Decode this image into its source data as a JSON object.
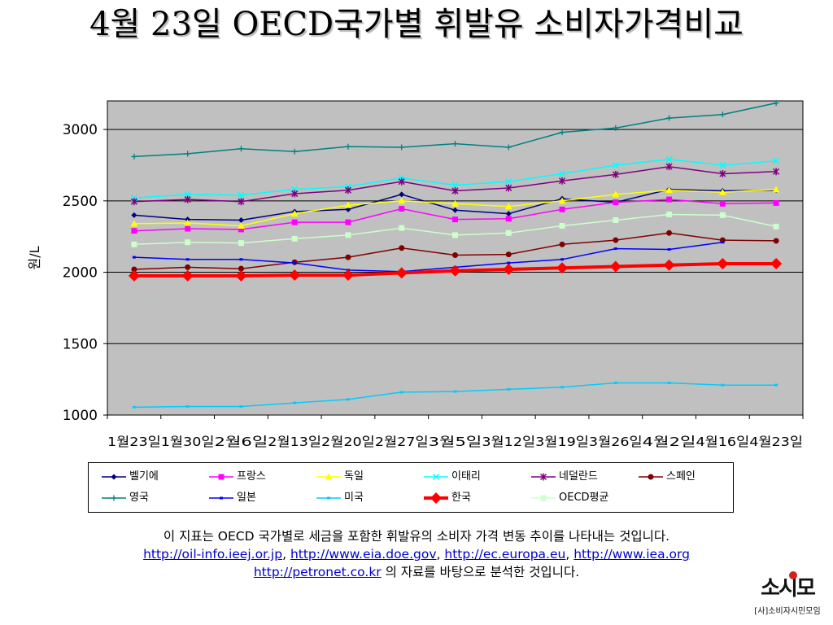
{
  "title": "4월 23일 OECD국가별 휘발유 소비자가격비교",
  "chart_data": {
    "type": "line",
    "ylabel": "원/L",
    "xlabel": "",
    "ylim": [
      1000,
      3200
    ],
    "yticks": [
      1000,
      1500,
      2000,
      2500,
      3000
    ],
    "grid": true,
    "background": "#c0c0c0",
    "legend_position": "bottom",
    "categories": [
      "1월23일",
      "1월30일",
      "2월6일",
      "2월13일",
      "2월20일",
      "2월27일",
      "3월5일",
      "3월12일",
      "3월19일",
      "3월26일",
      "4월2일",
      "4월16일",
      "4월23일"
    ],
    "series": [
      {
        "name": "벨기에",
        "color": "#000080",
        "marker": "diamond",
        "values": [
          2400,
          2370,
          2365,
          2425,
          2440,
          2545,
          2435,
          2410,
          2515,
          2490,
          2580,
          2570,
          2575
        ]
      },
      {
        "name": "프랑스",
        "color": "#ff00ff",
        "marker": "square",
        "values": [
          2290,
          2305,
          2300,
          2350,
          2350,
          2445,
          2370,
          2375,
          2440,
          2490,
          2510,
          2480,
          2485
        ]
      },
      {
        "name": "독일",
        "color": "#ffff00",
        "marker": "triangle",
        "values": [
          2340,
          2345,
          2325,
          2410,
          2470,
          2500,
          2480,
          2460,
          2500,
          2545,
          2575,
          2560,
          2580
        ]
      },
      {
        "name": "이태리",
        "color": "#00ffff",
        "marker": "x",
        "values": [
          2520,
          2545,
          2540,
          2580,
          2600,
          2660,
          2610,
          2635,
          2690,
          2750,
          2790,
          2750,
          2780
        ]
      },
      {
        "name": "네덜란드",
        "color": "#800080",
        "marker": "star",
        "values": [
          2495,
          2510,
          2495,
          2550,
          2575,
          2635,
          2570,
          2590,
          2640,
          2685,
          2740,
          2690,
          2705
        ]
      },
      {
        "name": "스페인",
        "color": "#800000",
        "marker": "circle",
        "values": [
          2020,
          2035,
          2025,
          2070,
          2105,
          2170,
          2120,
          2125,
          2195,
          2225,
          2275,
          2225,
          2220
        ]
      },
      {
        "name": "영국",
        "color": "#008080",
        "marker": "plus",
        "values": [
          2810,
          2830,
          2865,
          2845,
          2880,
          2875,
          2900,
          2875,
          2980,
          3010,
          3080,
          3105,
          3185
        ]
      },
      {
        "name": "일본",
        "color": "#0000ff",
        "marker": "dash",
        "values": [
          2105,
          2090,
          2090,
          2065,
          2015,
          2005,
          2035,
          2065,
          2090,
          2165,
          2160,
          2210,
          null
        ]
      },
      {
        "name": "미국",
        "color": "#00ccff",
        "marker": "dash",
        "values": [
          1055,
          1060,
          1060,
          1085,
          1110,
          1160,
          1165,
          1180,
          1195,
          1225,
          1225,
          1210,
          1210
        ]
      },
      {
        "name": "한국",
        "color": "#ff0000",
        "marker": "diamond-large",
        "values": [
          1975,
          1975,
          1975,
          1980,
          1980,
          1995,
          2010,
          2020,
          2030,
          2040,
          2050,
          2060,
          2060
        ]
      },
      {
        "name": "OECD평균",
        "color": "#ccffcc",
        "marker": "square",
        "values": [
          2195,
          2210,
          2205,
          2235,
          2260,
          2310,
          2260,
          2275,
          2325,
          2365,
          2405,
          2400,
          2320
        ]
      }
    ]
  },
  "footnote": {
    "line1": "이 지표는 OECD 국가별로 세금을 포함한 휘발유의 소비자 가격 변동 추이를 나타내는 것입니다.",
    "links": [
      "http://oil-info.ieej.or.jp",
      "http://www.eia.doe.gov",
      "http://ec.europa.eu",
      "http://www.iea.org",
      "http://petronet.co.kr"
    ],
    "sep": ", ",
    "line3_suffix": " 의 자료를 바탕으로 분석한 것입니다."
  },
  "logo": {
    "mark": "소시모",
    "org": "[사]소비자시민모임"
  }
}
